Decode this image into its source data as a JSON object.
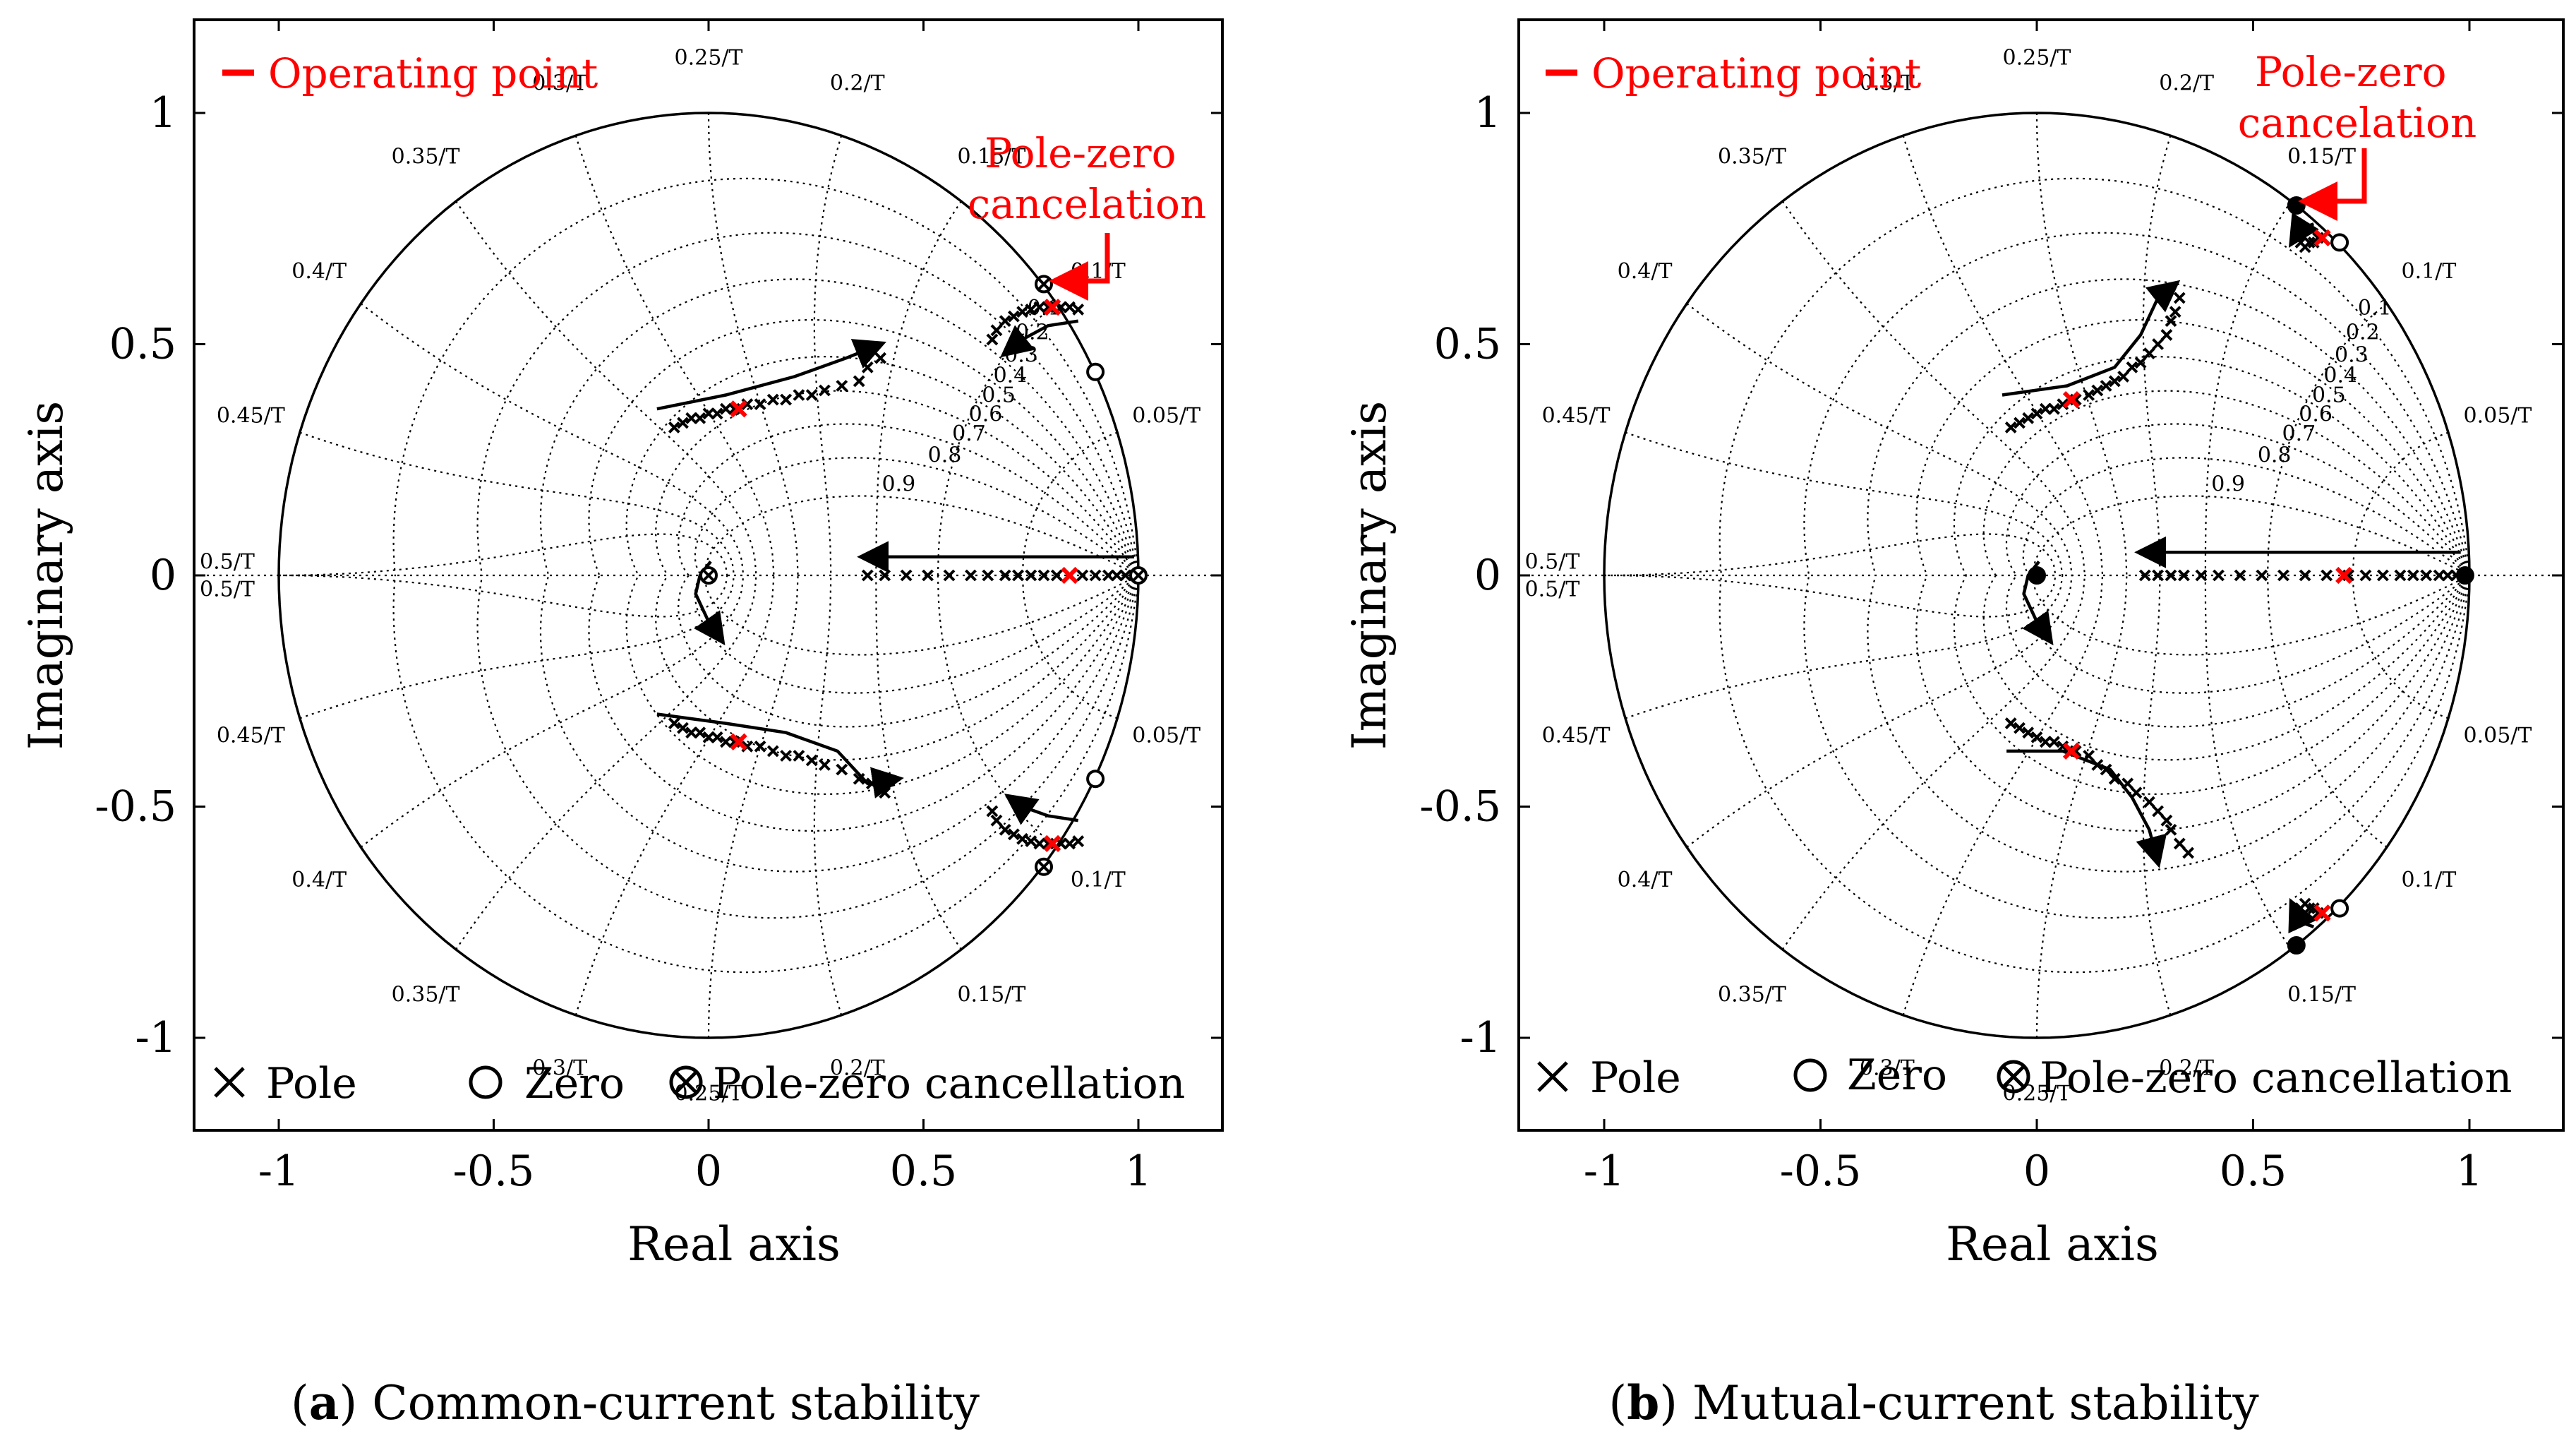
{
  "figure": {
    "xlabel": "Real axis",
    "ylabel": "Imaginary axis",
    "operating_point_label": "Operating point",
    "legend": {
      "pole": "Pole",
      "zero": "Zero",
      "cancel": "Pole-zero cancellation"
    }
  },
  "grid_labels": {
    "damping": [
      "0.1",
      "0.2",
      "0.3",
      "0.4",
      "0.5",
      "0.6",
      "0.7",
      "0.8",
      "0.9"
    ],
    "freq_upper": [
      "0.05/T",
      "0.1/T",
      "0.15/T",
      "0.2/T",
      "0.25/T",
      "0.3/T",
      "0.35/T",
      "0.4/T",
      "0.45/T",
      "0.5/T"
    ],
    "freq_lower": [
      "0.05/T",
      "0.1/T",
      "0.15/T",
      "0.2/T",
      "0.25/T",
      "0.3/T",
      "0.35/T",
      "0.4/T",
      "0.45/T",
      "0.5/T"
    ]
  },
  "chart_data": [
    {
      "type": "scatter",
      "id": "a",
      "title": "Common-current stability",
      "caption_letter": "a",
      "caption_text": "Common-current stability",
      "xlabel": "Real axis",
      "ylabel": "Imaginary axis",
      "xlim": [
        -1.2,
        1.2
      ],
      "ylim": [
        -1.2,
        1.2
      ],
      "xticks": [
        -1,
        -0.5,
        0,
        0.5,
        1
      ],
      "xtick_labels": [
        "-1",
        "-0.5",
        "0",
        "0.5",
        "1"
      ],
      "yticks": [
        -1,
        -0.5,
        0,
        0.5,
        1
      ],
      "ytick_labels": [
        "-1",
        "-0.5",
        "0",
        "0.5",
        "1"
      ],
      "annotation": "Pole-zero cancelation",
      "series": [
        {
          "name": "Pole",
          "marker": "x",
          "points": [
            [
              0.37,
              0
            ],
            [
              0.41,
              0
            ],
            [
              0.46,
              0
            ],
            [
              0.51,
              0
            ],
            [
              0.56,
              0
            ],
            [
              0.61,
              0
            ],
            [
              0.65,
              0
            ],
            [
              0.69,
              0
            ],
            [
              0.72,
              0
            ],
            [
              0.75,
              0
            ],
            [
              0.78,
              0
            ],
            [
              0.81,
              0
            ],
            [
              0.84,
              0
            ],
            [
              0.87,
              0
            ],
            [
              0.9,
              0
            ],
            [
              0.93,
              0
            ],
            [
              0.95,
              0
            ],
            [
              0.97,
              0
            ],
            [
              0.99,
              0
            ],
            [
              -0.08,
              0.32
            ],
            [
              -0.06,
              0.33
            ],
            [
              -0.04,
              0.34
            ],
            [
              -0.02,
              0.34
            ],
            [
              0,
              0.35
            ],
            [
              0.02,
              0.35
            ],
            [
              0.04,
              0.36
            ],
            [
              0.06,
              0.36
            ],
            [
              0.09,
              0.37
            ],
            [
              0.12,
              0.37
            ],
            [
              0.15,
              0.38
            ],
            [
              0.18,
              0.38
            ],
            [
              0.21,
              0.39
            ],
            [
              0.24,
              0.39
            ],
            [
              0.27,
              0.4
            ],
            [
              0.31,
              0.41
            ],
            [
              0.35,
              0.42
            ],
            [
              0.37,
              0.45
            ],
            [
              0.4,
              0.47
            ],
            [
              -0.08,
              -0.32
            ],
            [
              -0.06,
              -0.33
            ],
            [
              -0.04,
              -0.34
            ],
            [
              -0.02,
              -0.34
            ],
            [
              0,
              -0.35
            ],
            [
              0.02,
              -0.35
            ],
            [
              0.04,
              -0.36
            ],
            [
              0.06,
              -0.36
            ],
            [
              0.09,
              -0.37
            ],
            [
              0.12,
              -0.37
            ],
            [
              0.15,
              -0.38
            ],
            [
              0.18,
              -0.39
            ],
            [
              0.21,
              -0.39
            ],
            [
              0.24,
              -0.4
            ],
            [
              0.27,
              -0.41
            ],
            [
              0.31,
              -0.42
            ],
            [
              0.35,
              -0.44
            ],
            [
              0.38,
              -0.45
            ],
            [
              0.41,
              -0.47
            ],
            [
              0.66,
              0.51
            ],
            [
              0.67,
              0.53
            ],
            [
              0.69,
              0.55
            ],
            [
              0.71,
              0.56
            ],
            [
              0.73,
              0.57
            ],
            [
              0.75,
              0.575
            ],
            [
              0.77,
              0.58
            ],
            [
              0.79,
              0.58
            ],
            [
              0.82,
              0.58
            ],
            [
              0.84,
              0.58
            ],
            [
              0.86,
              0.575
            ],
            [
              0.66,
              -0.51
            ],
            [
              0.67,
              -0.53
            ],
            [
              0.69,
              -0.55
            ],
            [
              0.71,
              -0.56
            ],
            [
              0.73,
              -0.57
            ],
            [
              0.75,
              -0.575
            ],
            [
              0.77,
              -0.58
            ],
            [
              0.79,
              -0.58
            ],
            [
              0.82,
              -0.58
            ],
            [
              0.84,
              -0.58
            ],
            [
              0.86,
              -0.575
            ]
          ]
        },
        {
          "name": "Zero",
          "marker": "o",
          "points": [
            [
              0.9,
              0.44
            ],
            [
              0.9,
              -0.44
            ]
          ]
        },
        {
          "name": "Pole-zero cancellation",
          "marker": "ox",
          "points": [
            [
              0,
              0
            ],
            [
              1,
              0
            ],
            [
              0.78,
              0.63
            ],
            [
              0.78,
              -0.63
            ]
          ]
        },
        {
          "name": "Operating point",
          "marker": "x-red",
          "points": [
            [
              0.84,
              0
            ],
            [
              0.07,
              0.36
            ],
            [
              0.07,
              -0.36
            ],
            [
              0.8,
              0.58
            ],
            [
              0.8,
              -0.58
            ]
          ]
        }
      ],
      "trajectories": [
        {
          "name": "real-axis",
          "points": [
            [
              0.99,
              0.04
            ],
            [
              0.36,
              0.04
            ]
          ]
        },
        {
          "name": "upper-inner",
          "points": [
            [
              -0.12,
              0.36
            ],
            [
              0.04,
              0.39
            ],
            [
              0.2,
              0.43
            ],
            [
              0.32,
              0.47
            ],
            [
              0.4,
              0.5
            ]
          ]
        },
        {
          "name": "lower-inner",
          "points": [
            [
              -0.12,
              -0.3
            ],
            [
              0.04,
              -0.32
            ],
            [
              0.18,
              -0.34
            ],
            [
              0.3,
              -0.38
            ],
            [
              0.37,
              -0.45
            ],
            [
              0.44,
              -0.44
            ]
          ]
        },
        {
          "name": "upper-outer",
          "points": [
            [
              0.86,
              0.55
            ],
            [
              0.79,
              0.54
            ],
            [
              0.73,
              0.51
            ],
            [
              0.69,
              0.48
            ]
          ]
        },
        {
          "name": "lower-outer",
          "points": [
            [
              0.86,
              -0.53
            ],
            [
              0.79,
              -0.52
            ],
            [
              0.73,
              -0.5
            ],
            [
              0.7,
              -0.48
            ]
          ]
        },
        {
          "name": "zero-approach",
          "points": [
            [
              0.005,
              0.03
            ],
            [
              -0.02,
              0.0
            ],
            [
              -0.03,
              -0.04
            ],
            [
              0,
              -0.1
            ],
            [
              0.03,
              -0.14
            ]
          ]
        }
      ]
    },
    {
      "type": "scatter",
      "id": "b",
      "title": "Mutual-current stability",
      "caption_letter": "b",
      "caption_text": "Mutual-current stability",
      "xlabel": "Real axis",
      "ylabel": "Imaginary axis",
      "xlim": [
        -1.2,
        1.2
      ],
      "ylim": [
        -1.2,
        1.2
      ],
      "xticks": [
        -1,
        -0.5,
        0,
        0.5,
        1
      ],
      "xtick_labels": [
        "-1",
        "-0.5",
        "0",
        "0.5",
        "1"
      ],
      "yticks": [
        -1,
        -0.5,
        0,
        0.5,
        1
      ],
      "ytick_labels": [
        "-1",
        "-0.5",
        "0",
        "0.5",
        "1"
      ],
      "annotation": "Pole-zero cancelation",
      "series": [
        {
          "name": "Pole",
          "marker": "x",
          "points": [
            [
              0.25,
              0
            ],
            [
              0.28,
              0
            ],
            [
              0.31,
              0
            ],
            [
              0.34,
              0
            ],
            [
              0.38,
              0
            ],
            [
              0.42,
              0
            ],
            [
              0.47,
              0
            ],
            [
              0.52,
              0
            ],
            [
              0.57,
              0
            ],
            [
              0.62,
              0
            ],
            [
              0.67,
              0
            ],
            [
              0.72,
              0
            ],
            [
              0.76,
              0
            ],
            [
              0.8,
              0
            ],
            [
              0.84,
              0
            ],
            [
              0.87,
              0
            ],
            [
              0.9,
              0
            ],
            [
              0.93,
              0
            ],
            [
              0.95,
              0
            ],
            [
              0.97,
              0
            ],
            [
              0.99,
              0
            ],
            [
              -0.06,
              0.32
            ],
            [
              -0.04,
              0.33
            ],
            [
              -0.02,
              0.34
            ],
            [
              0.0,
              0.35
            ],
            [
              0.02,
              0.36
            ],
            [
              0.04,
              0.36
            ],
            [
              0.06,
              0.37
            ],
            [
              0.09,
              0.38
            ],
            [
              0.12,
              0.39
            ],
            [
              0.14,
              0.4
            ],
            [
              0.16,
              0.41
            ],
            [
              0.18,
              0.42
            ],
            [
              0.2,
              0.43
            ],
            [
              0.22,
              0.45
            ],
            [
              0.24,
              0.46
            ],
            [
              0.26,
              0.48
            ],
            [
              0.28,
              0.5
            ],
            [
              0.3,
              0.52
            ],
            [
              0.31,
              0.55
            ],
            [
              0.32,
              0.57
            ],
            [
              0.33,
              0.6
            ],
            [
              -0.06,
              -0.32
            ],
            [
              -0.04,
              -0.33
            ],
            [
              -0.02,
              -0.34
            ],
            [
              0.0,
              -0.35
            ],
            [
              0.02,
              -0.36
            ],
            [
              0.04,
              -0.36
            ],
            [
              0.06,
              -0.37
            ],
            [
              0.09,
              -0.38
            ],
            [
              0.12,
              -0.39
            ],
            [
              0.14,
              -0.41
            ],
            [
              0.16,
              -0.42
            ],
            [
              0.18,
              -0.44
            ],
            [
              0.21,
              -0.45
            ],
            [
              0.23,
              -0.47
            ],
            [
              0.26,
              -0.49
            ],
            [
              0.28,
              -0.51
            ],
            [
              0.3,
              -0.53
            ],
            [
              0.31,
              -0.55
            ],
            [
              0.33,
              -0.58
            ],
            [
              0.35,
              -0.6
            ],
            [
              0.6,
              0.73
            ],
            [
              0.61,
              0.72
            ],
            [
              0.62,
              0.71
            ],
            [
              0.63,
              0.72
            ],
            [
              0.64,
              0.72
            ],
            [
              0.65,
              0.73
            ],
            [
              0.66,
              0.73
            ],
            [
              0.6,
              -0.73
            ],
            [
              0.61,
              -0.72
            ],
            [
              0.62,
              -0.71
            ],
            [
              0.63,
              -0.72
            ],
            [
              0.64,
              -0.72
            ],
            [
              0.65,
              -0.73
            ],
            [
              0.66,
              -0.73
            ]
          ]
        },
        {
          "name": "Zero",
          "marker": "o",
          "points": [
            [
              0.7,
              0.72
            ],
            [
              0.7,
              -0.72
            ],
            [
              0.6,
              0.8
            ],
            [
              0.6,
              -0.8
            ],
            [
              0,
              0
            ],
            [
              0.99,
              0
            ]
          ]
        },
        {
          "name": "Operating point",
          "marker": "x-red",
          "points": [
            [
              0.71,
              0
            ],
            [
              0.08,
              0.38
            ],
            [
              0.08,
              -0.38
            ],
            [
              0.66,
              0.73
            ],
            [
              0.66,
              -0.73
            ]
          ]
        }
      ],
      "trajectories": [
        {
          "name": "real-axis",
          "points": [
            [
              0.98,
              0.05
            ],
            [
              0.24,
              0.05
            ]
          ]
        },
        {
          "name": "upper-inner",
          "points": [
            [
              -0.08,
              0.39
            ],
            [
              0.07,
              0.41
            ],
            [
              0.18,
              0.45
            ],
            [
              0.24,
              0.52
            ],
            [
              0.28,
              0.6
            ],
            [
              0.32,
              0.63
            ]
          ]
        },
        {
          "name": "lower-inner",
          "points": [
            [
              -0.07,
              -0.38
            ],
            [
              0.06,
              -0.38
            ],
            [
              0.17,
              -0.42
            ],
            [
              0.22,
              -0.48
            ],
            [
              0.26,
              -0.55
            ],
            [
              0.28,
              -0.62
            ]
          ]
        },
        {
          "name": "upper-outer",
          "points": [
            [
              0.64,
              0.76
            ],
            [
              0.61,
              0.75
            ],
            [
              0.59,
              0.72
            ]
          ]
        },
        {
          "name": "lower-outer",
          "points": [
            [
              0.64,
              -0.76
            ],
            [
              0.61,
              -0.75
            ],
            [
              0.59,
              -0.71
            ]
          ]
        },
        {
          "name": "zero-approach",
          "points": [
            [
              0.005,
              0.03
            ],
            [
              -0.02,
              0.0
            ],
            [
              -0.03,
              -0.04
            ],
            [
              0,
              -0.1
            ],
            [
              0.03,
              -0.14
            ]
          ]
        }
      ]
    }
  ]
}
